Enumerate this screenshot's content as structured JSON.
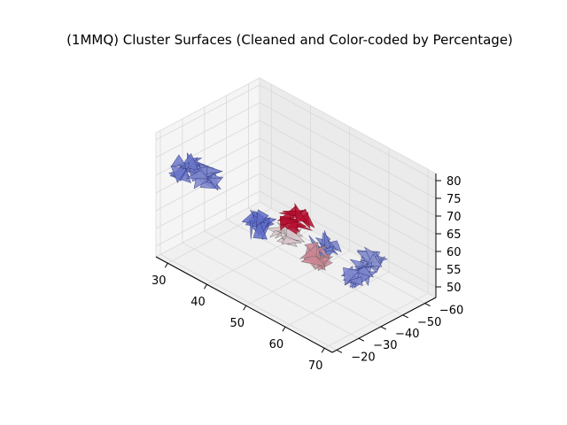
{
  "chart_data": {
    "type": "surface3d",
    "title": "(1MMQ) Cluster Surfaces (Cleaned and Color-coded by Percentage)",
    "xlabel": "",
    "ylabel": "",
    "zlabel": "",
    "x_ticks": [
      "30",
      "40",
      "50",
      "60",
      "70"
    ],
    "y_ticks": [
      "−20",
      "−30",
      "−40",
      "−50",
      "−60"
    ],
    "z_ticks": [
      "50",
      "55",
      "60",
      "65",
      "70",
      "75",
      "80"
    ],
    "xlim": [
      27,
      72
    ],
    "ylim": [
      -65,
      -18
    ],
    "zlim": [
      47,
      82
    ],
    "grid": true,
    "colormap": "coolwarm",
    "colors": {
      "low": "#3b4cc0",
      "mid": "#dddcdc",
      "high": "#b40426",
      "mid_high": "#e0a080",
      "pane": "#f2f2f2",
      "grid": "#d9d9d9"
    },
    "clusters": [
      {
        "x": 29,
        "y": -28,
        "z": 70,
        "percentage": 0.15
      },
      {
        "x": 37,
        "y": -23,
        "z": 74,
        "percentage": 0.2
      },
      {
        "x": 44,
        "y": -34,
        "z": 61,
        "percentage": 0.12
      },
      {
        "x": 52,
        "y": -32,
        "z": 63,
        "percentage": 0.55
      },
      {
        "x": 57,
        "y": -28,
        "z": 72,
        "percentage": 0.97
      },
      {
        "x": 63,
        "y": -27,
        "z": 66,
        "percentage": 0.7
      },
      {
        "x": 55,
        "y": -44,
        "z": 58,
        "percentage": 0.18
      },
      {
        "x": 62,
        "y": -47,
        "z": 54,
        "percentage": 0.2
      },
      {
        "x": 58,
        "y": -60,
        "z": 50,
        "percentage": 0.25
      }
    ]
  }
}
